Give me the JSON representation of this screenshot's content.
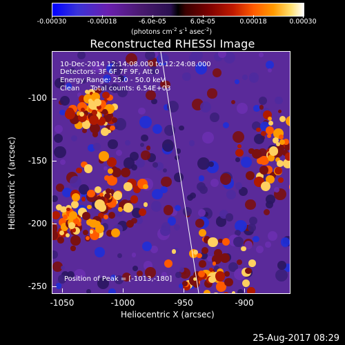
{
  "colorbar": {
    "ticks": [
      "-0.00030",
      "-0.00018",
      "-6.0e-05",
      "6.0e-05",
      "0.00018",
      "0.00030"
    ],
    "units": "(photons cm⁻² s⁻¹ asec⁻²)",
    "units_parts": {
      "base": "(photons cm",
      "e1": "-2",
      "s": " s",
      "e2": "-1",
      "a": " asec",
      "e3": "-2",
      "close": ")"
    }
  },
  "title": "Reconstructed RHESSI Image",
  "annotations": {
    "time": "10-Dec-2014 12:14:08.000 to 12:24:08.000",
    "detectors": "Detectors: 3F 6F 7F 9F, Att 0",
    "energy": "Energy Range: 25.0 - 50.0 keV",
    "clean": "Clean     Total counts: 6.54E+03",
    "peak": "Position of Peak = [-1013,-180]"
  },
  "axes": {
    "xlabel": "Heliocentric X (arcsec)",
    "ylabel": "Heliocentric Y (arcsec)",
    "xticks": [
      "-1050",
      "-1000",
      "-950",
      "-900"
    ],
    "yticks": [
      "-100",
      "-150",
      "-200",
      "-250"
    ]
  },
  "timestamp": "25-Aug-2017 08:29"
}
